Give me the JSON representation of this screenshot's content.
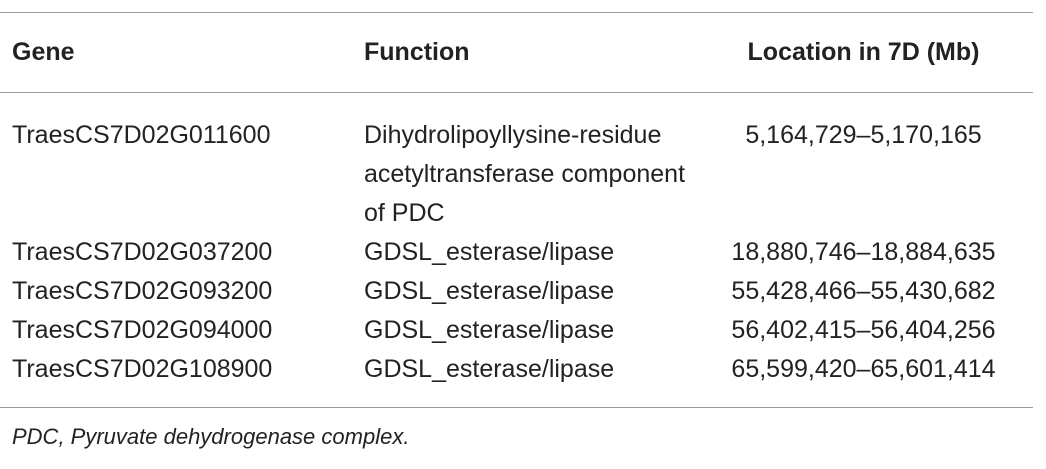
{
  "table": {
    "header": [
      "Gene",
      "Function",
      "Location in 7D (Mb)"
    ],
    "rows": [
      [
        "TraesCS7D02G011600",
        "Dihydrolipoyllysine-residue acetyltransferase component of PDC",
        "5,164,729–5,170,165"
      ],
      [
        "TraesCS7D02G037200",
        "GDSL_esterase/lipase",
        "18,880,746–18,884,635"
      ],
      [
        "TraesCS7D02G093200",
        "GDSL_esterase/lipase",
        "55,428,466–55,430,682"
      ],
      [
        "TraesCS7D02G094000",
        "GDSL_esterase/lipase",
        "56,402,415–56,404,256"
      ],
      [
        "TraesCS7D02G108900",
        "GDSL_esterase/lipase",
        "65,599,420–65,601,414"
      ]
    ]
  },
  "footnote": "PDC, Pyruvate dehydrogenase complex."
}
